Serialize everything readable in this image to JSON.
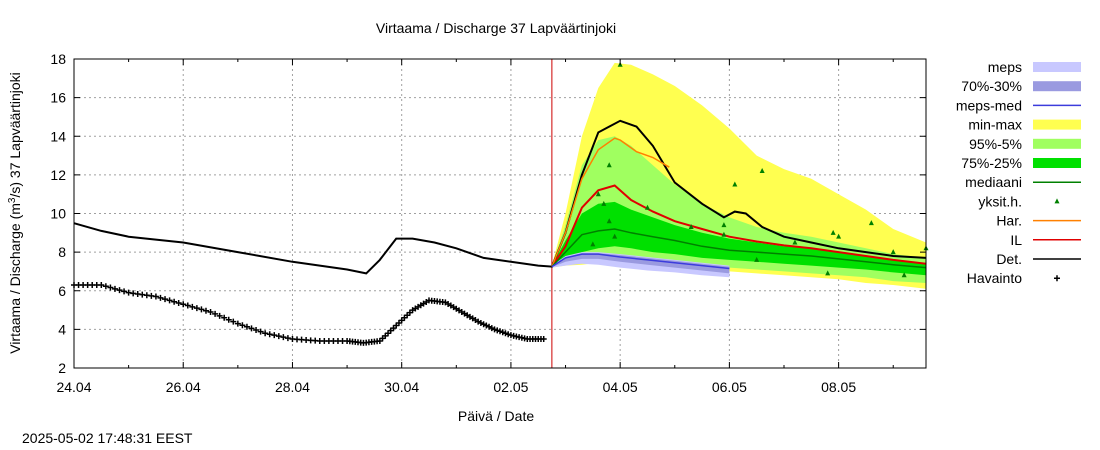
{
  "chart_data": {
    "type": "line",
    "title": "Virtaama / Discharge  37 Lapväärtinjoki",
    "xlabel": "Päivä / Date",
    "ylabel_prefix": "Virtaama / Discharge (m",
    "ylabel_sup": "3",
    "ylabel_suffix": "/s)  37 Lapväärtinjoki",
    "ylim": [
      2,
      18
    ],
    "xlim": [
      0,
      15.6
    ],
    "yticks": [
      2,
      4,
      6,
      8,
      10,
      12,
      14,
      16,
      18
    ],
    "xticks": [
      {
        "x": 0,
        "label": "24.04"
      },
      {
        "x": 2,
        "label": "26.04"
      },
      {
        "x": 4,
        "label": "28.04"
      },
      {
        "x": 6,
        "label": "30.04"
      },
      {
        "x": 8,
        "label": "02.05"
      },
      {
        "x": 10,
        "label": "04.05"
      },
      {
        "x": 12,
        "label": "06.05"
      },
      {
        "x": 14,
        "label": "08.05"
      }
    ],
    "grid": true,
    "forecast_start_x": 8.75,
    "legend_position": "right",
    "colors": {
      "meps": "#c8c8ff",
      "meps_7030": "#9a9ae0",
      "meps_med": "#3c3cdc",
      "minmax": "#ffff50",
      "p95_5": "#a0ff60",
      "p75_25": "#00e000",
      "mediaani": "#008000",
      "yksit": "#008000",
      "har": "#ff8000",
      "il": "#e00000",
      "det": "#000000",
      "havainto": "#000000",
      "forecast_line": "#cc0000"
    },
    "series": [
      {
        "key": "det",
        "name": "Det.",
        "x": [
          0,
          0.5,
          1,
          2,
          3,
          4,
          5,
          5.35,
          5.6,
          5.9,
          6.2,
          6.6,
          7,
          7.5,
          8,
          8.5,
          8.75,
          9.0,
          9.3,
          9.6,
          10.0,
          10.3,
          10.6,
          11.0,
          11.5,
          11.9,
          12.1,
          12.3,
          12.6,
          13,
          13.5,
          14,
          14.5,
          15,
          15.6
        ],
        "y": [
          9.5,
          9.1,
          8.8,
          8.5,
          8.0,
          7.5,
          7.1,
          6.9,
          7.6,
          8.7,
          8.7,
          8.5,
          8.2,
          7.7,
          7.5,
          7.3,
          7.25,
          9.0,
          12.0,
          14.2,
          14.8,
          14.5,
          13.5,
          11.6,
          10.5,
          9.8,
          10.1,
          10.0,
          9.3,
          8.8,
          8.5,
          8.2,
          8.0,
          7.8,
          7.7
        ]
      },
      {
        "key": "il",
        "name": "IL",
        "x": [
          8.75,
          9.0,
          9.3,
          9.6,
          9.9,
          10.2,
          10.6,
          11.0,
          11.5,
          12,
          12.5,
          13,
          13.5,
          14,
          14.5,
          15,
          15.6
        ],
        "y": [
          7.25,
          8.3,
          10.3,
          11.2,
          11.45,
          10.7,
          10.1,
          9.6,
          9.2,
          8.8,
          8.55,
          8.35,
          8.2,
          8.0,
          7.8,
          7.6,
          7.4
        ]
      },
      {
        "key": "har",
        "name": "Har.",
        "x": [
          8.75,
          9.0,
          9.3,
          9.6,
          9.9,
          10.0,
          10.3,
          10.6,
          10.9
        ],
        "y": [
          7.25,
          9.0,
          11.8,
          13.3,
          13.9,
          13.8,
          13.2,
          12.9,
          12.4
        ]
      },
      {
        "key": "mediaani",
        "name": "mediaani",
        "x": [
          8.75,
          9.0,
          9.3,
          9.6,
          9.9,
          10.2,
          10.6,
          11.0,
          11.5,
          12,
          12.5,
          13,
          13.5,
          14,
          14.5,
          15,
          15.6
        ],
        "y": [
          7.25,
          8.0,
          8.9,
          9.1,
          9.2,
          9.0,
          8.8,
          8.6,
          8.3,
          8.1,
          8.0,
          7.9,
          7.8,
          7.65,
          7.5,
          7.35,
          7.2
        ]
      },
      {
        "key": "meps_med",
        "name": "meps-med",
        "x": [
          8.75,
          9.0,
          9.3,
          9.6,
          10.0,
          10.5,
          11,
          11.5,
          12.0
        ],
        "y": [
          7.25,
          7.7,
          7.9,
          7.9,
          7.75,
          7.6,
          7.45,
          7.3,
          7.15
        ]
      }
    ],
    "bands": [
      {
        "key": "minmax",
        "name": "min-max",
        "x": [
          8.75,
          9.0,
          9.3,
          9.6,
          9.9,
          10.2,
          10.6,
          11.0,
          11.5,
          12,
          12.5,
          13,
          13.5,
          14,
          14.5,
          15,
          15.6
        ],
        "upper": [
          7.3,
          10.0,
          14.0,
          16.5,
          17.8,
          17.7,
          17.2,
          16.6,
          15.6,
          14.4,
          13.0,
          12.3,
          11.8,
          11.0,
          10.2,
          9.2,
          8.5
        ],
        "lower": [
          7.2,
          7.3,
          7.35,
          7.45,
          7.4,
          7.35,
          7.3,
          7.2,
          7.1,
          7.0,
          6.9,
          6.8,
          6.7,
          6.6,
          6.4,
          6.3,
          6.1
        ]
      },
      {
        "key": "p95_5",
        "name": "95%-5%",
        "x": [
          8.75,
          9.0,
          9.3,
          9.6,
          9.9,
          10.2,
          10.6,
          11.0,
          11.5,
          12,
          12.5,
          13,
          13.5,
          14,
          14.5,
          15,
          15.6
        ],
        "upper": [
          7.3,
          9.4,
          12.5,
          13.8,
          14.0,
          13.5,
          12.5,
          11.5,
          10.5,
          9.8,
          9.3,
          9.0,
          8.8,
          8.5,
          8.2,
          7.9,
          7.7
        ],
        "lower": [
          7.2,
          7.4,
          7.6,
          7.7,
          7.7,
          7.6,
          7.5,
          7.4,
          7.3,
          7.2,
          7.1,
          7.0,
          6.9,
          6.8,
          6.7,
          6.5,
          6.4
        ]
      },
      {
        "key": "p75_25",
        "name": "75%-25%",
        "x": [
          8.75,
          9.0,
          9.3,
          9.6,
          9.9,
          10.2,
          10.6,
          11.0,
          11.5,
          12,
          12.5,
          13,
          13.5,
          14,
          14.5,
          15,
          15.6
        ],
        "upper": [
          7.3,
          8.6,
          10.0,
          10.5,
          10.6,
          10.2,
          9.8,
          9.4,
          9.0,
          8.7,
          8.5,
          8.3,
          8.2,
          8.0,
          7.8,
          7.6,
          7.4
        ],
        "lower": [
          7.2,
          7.6,
          8.0,
          8.2,
          8.3,
          8.2,
          8.0,
          7.9,
          7.7,
          7.6,
          7.5,
          7.4,
          7.3,
          7.2,
          7.1,
          6.95,
          6.8
        ]
      },
      {
        "key": "meps",
        "name": "meps",
        "x": [
          8.75,
          9.0,
          9.3,
          9.6,
          10.0,
          10.5,
          11,
          11.5,
          12.0
        ],
        "upper": [
          7.3,
          7.8,
          8.0,
          8.0,
          7.9,
          7.75,
          7.6,
          7.45,
          7.3
        ],
        "lower": [
          7.2,
          7.3,
          7.4,
          7.35,
          7.2,
          7.05,
          6.95,
          6.8,
          6.7
        ]
      },
      {
        "key": "meps_7030",
        "name": "70%-30%",
        "x": [
          8.75,
          9.0,
          9.3,
          9.6,
          10.0,
          10.5,
          11,
          11.5,
          12.0
        ],
        "upper": [
          7.28,
          7.75,
          7.95,
          7.95,
          7.85,
          7.7,
          7.55,
          7.4,
          7.25
        ],
        "lower": [
          7.22,
          7.5,
          7.65,
          7.65,
          7.5,
          7.35,
          7.2,
          7.05,
          6.9
        ]
      }
    ],
    "scatter": {
      "key": "yksit",
      "name": "yksit.h.",
      "points": [
        [
          9.6,
          11.0
        ],
        [
          9.7,
          10.5
        ],
        [
          9.8,
          9.6
        ],
        [
          9.9,
          8.8
        ],
        [
          10.0,
          17.7
        ],
        [
          9.5,
          8.4
        ],
        [
          9.8,
          12.5
        ],
        [
          10.5,
          10.3
        ],
        [
          11.3,
          9.3
        ],
        [
          11.9,
          9.4
        ],
        [
          12.1,
          11.5
        ],
        [
          12.6,
          12.2
        ],
        [
          13.2,
          8.5
        ],
        [
          13.9,
          9.0
        ],
        [
          14.0,
          8.8
        ],
        [
          14.6,
          9.5
        ],
        [
          15.0,
          8.0
        ],
        [
          15.6,
          8.2
        ],
        [
          13.8,
          6.9
        ],
        [
          15.2,
          6.8
        ],
        [
          12.5,
          7.6
        ],
        [
          11.9,
          8.9
        ]
      ]
    },
    "observations": {
      "key": "havainto",
      "name": "Havainto",
      "x": [
        0,
        0.5,
        1,
        1.5,
        2,
        2.5,
        3,
        3.5,
        4,
        4.5,
        5,
        5.3,
        5.6,
        5.9,
        6.2,
        6.5,
        6.8,
        7.1,
        7.4,
        7.7,
        8.0,
        8.3,
        8.6
      ],
      "y": [
        6.3,
        6.3,
        5.9,
        5.7,
        5.3,
        4.9,
        4.3,
        3.8,
        3.5,
        3.4,
        3.4,
        3.3,
        3.4,
        4.2,
        5.0,
        5.5,
        5.4,
        4.9,
        4.4,
        4.0,
        3.7,
        3.5,
        3.5
      ]
    },
    "legend_order": [
      "meps",
      "meps_7030",
      "meps_med",
      "minmax",
      "p95_5",
      "p75_25",
      "mediaani",
      "yksit",
      "har",
      "il",
      "det",
      "havainto"
    ]
  },
  "legend_labels": {
    "meps": "meps",
    "meps_7030": "70%-30%",
    "meps_med": "meps-med",
    "minmax": "min-max",
    "p95_5": "95%-5%",
    "p75_25": "75%-25%",
    "mediaani": "mediaani",
    "yksit": "yksit.h.",
    "har": "Har.",
    "il": "IL",
    "det": "Det.",
    "havainto": "Havainto"
  },
  "timestamp": "2025-05-02 17:48:31 EEST"
}
